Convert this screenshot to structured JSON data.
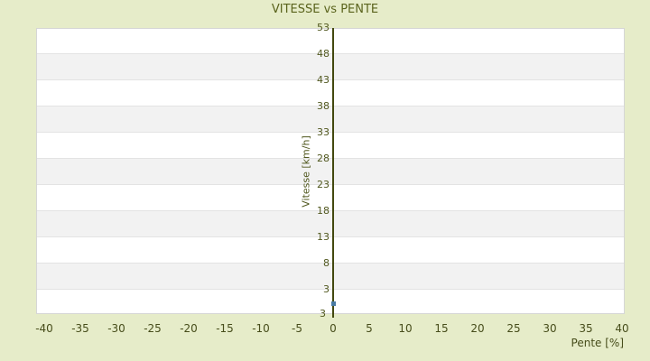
{
  "chart_data": {
    "type": "scatter",
    "title": "VITESSE vs PENTE",
    "xlabel": "Pente [%]",
    "ylabel": "Vitesse [km/h]",
    "x_ticks": [
      -40,
      -35,
      -30,
      -25,
      -20,
      -15,
      -10,
      -5,
      0,
      5,
      10,
      15,
      20,
      25,
      30,
      35,
      40
    ],
    "y_ticks": [
      53,
      48,
      43,
      38,
      33,
      28,
      23,
      18,
      13,
      8,
      3
    ],
    "y_min_label": "3",
    "xlim": [
      -41,
      40.4
    ],
    "ylim": [
      -1.7,
      53
    ],
    "grid": "alternating-horizontal-bands",
    "legend_position": "none",
    "axis_position": "y-axis-drawn-at-x-zero",
    "series": [
      {
        "name": "Vitesse",
        "marker": "square",
        "points": [
          {
            "x": 0,
            "y": 0.4
          }
        ]
      }
    ]
  },
  "colors": {
    "background": "#e6ecc9",
    "band_light": "#ffffff",
    "band_dark": "#f2f2f2",
    "band_divider": "#e3e3e3",
    "plot_border": "#d6d6d6",
    "axis_line": "#43490f",
    "y_tick_label": "#51581f",
    "x_tick_label": "#474d1b",
    "title": "#5a631c",
    "point": "#4a7ba3"
  }
}
